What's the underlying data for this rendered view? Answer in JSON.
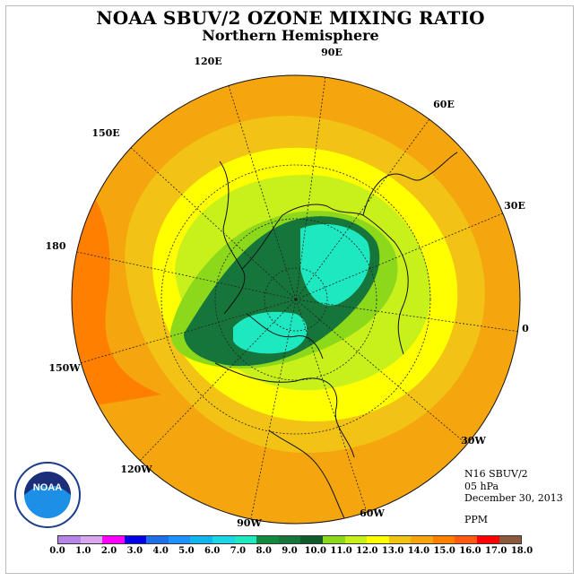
{
  "title": "NOAA SBUV/2 OZONE MIXING RATIO",
  "subtitle": "Northern Hemisphere",
  "info": {
    "instrument": "N16 SBUV/2",
    "level": "05 hPa",
    "date": "December 30, 2013",
    "units": "PPM"
  },
  "longitude_labels": [
    "90E",
    "60E",
    "30E",
    "0",
    "30W",
    "60W",
    "90W",
    "120W",
    "150W",
    "180",
    "150E",
    "120E"
  ],
  "logo": {
    "name": "noaa-logo",
    "text": "NOAA"
  },
  "colorbar": {
    "colors": [
      "#b586e8",
      "#d9a6f2",
      "#ff00ff",
      "#0000e6",
      "#1e6fe8",
      "#1e90ff",
      "#12b6ee",
      "#1cd6e6",
      "#1ee8c0",
      "#128a3c",
      "#16753a",
      "#0f5c2a",
      "#8cd81a",
      "#c8f01a",
      "#ffff00",
      "#f2c314",
      "#f5a50e",
      "#ff7f00",
      "#ff5a14",
      "#ff0000",
      "#8b5a3c"
    ],
    "labels": [
      "0.0",
      "1.0",
      "2.0",
      "3.0",
      "4.0",
      "5.0",
      "6.0",
      "7.0",
      "8.0",
      "9.0",
      "10.0",
      "11.0",
      "12.0",
      "13.0",
      "14.0",
      "15.0",
      "16.0",
      "17.0",
      "18.0"
    ]
  }
}
